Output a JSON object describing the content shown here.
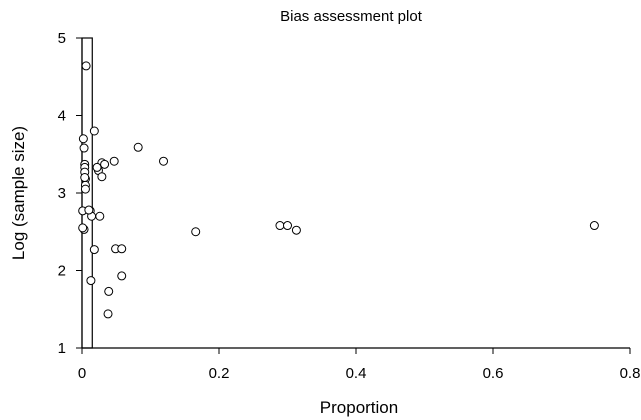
{
  "chart_data": {
    "type": "scatter",
    "title": "Bias assessment plot",
    "xlabel": "Proportion",
    "ylabel": "Log (sample size)",
    "xlim": [
      0,
      0.8
    ],
    "ylim": [
      1,
      5
    ],
    "xticks": [
      0,
      0.2,
      0.4,
      0.6,
      0.8
    ],
    "xtick_labels": [
      "0",
      "0.2",
      "0.4",
      "0.6",
      "0.8"
    ],
    "yticks": [
      1,
      2,
      3,
      4,
      5
    ],
    "ytick_labels": [
      "1",
      "2",
      "3",
      "4",
      "5"
    ],
    "reference_band": {
      "x": [
        0,
        0.015
      ],
      "y": [
        1,
        5
      ]
    },
    "grid": false,
    "legend": "none",
    "series": [
      {
        "x": [
          0.006,
          0.002,
          0.003,
          0.004,
          0.004,
          0.004,
          0.005,
          0.005,
          0.005,
          0.004,
          0.001,
          0.003,
          0.012,
          0.018,
          0.024,
          0.029,
          0.033,
          0.029,
          0.022,
          0.047,
          0.082,
          0.119,
          0.166,
          0.289,
          0.3,
          0.313,
          0.748,
          0.014,
          0.026,
          0.01,
          0.001,
          0.018,
          0.049,
          0.058,
          0.058,
          0.039,
          0.013,
          0.038
        ],
        "y": [
          4.64,
          3.7,
          3.58,
          3.37,
          3.33,
          3.27,
          3.18,
          3.1,
          3.05,
          3.2,
          2.77,
          2.53,
          2.77,
          3.8,
          3.29,
          3.39,
          3.37,
          3.21,
          3.33,
          3.41,
          3.59,
          3.41,
          2.5,
          2.58,
          2.58,
          2.52,
          2.58,
          2.7,
          2.7,
          2.78,
          2.55,
          2.27,
          2.28,
          2.28,
          1.93,
          1.73,
          1.87,
          1.44
        ]
      }
    ]
  }
}
